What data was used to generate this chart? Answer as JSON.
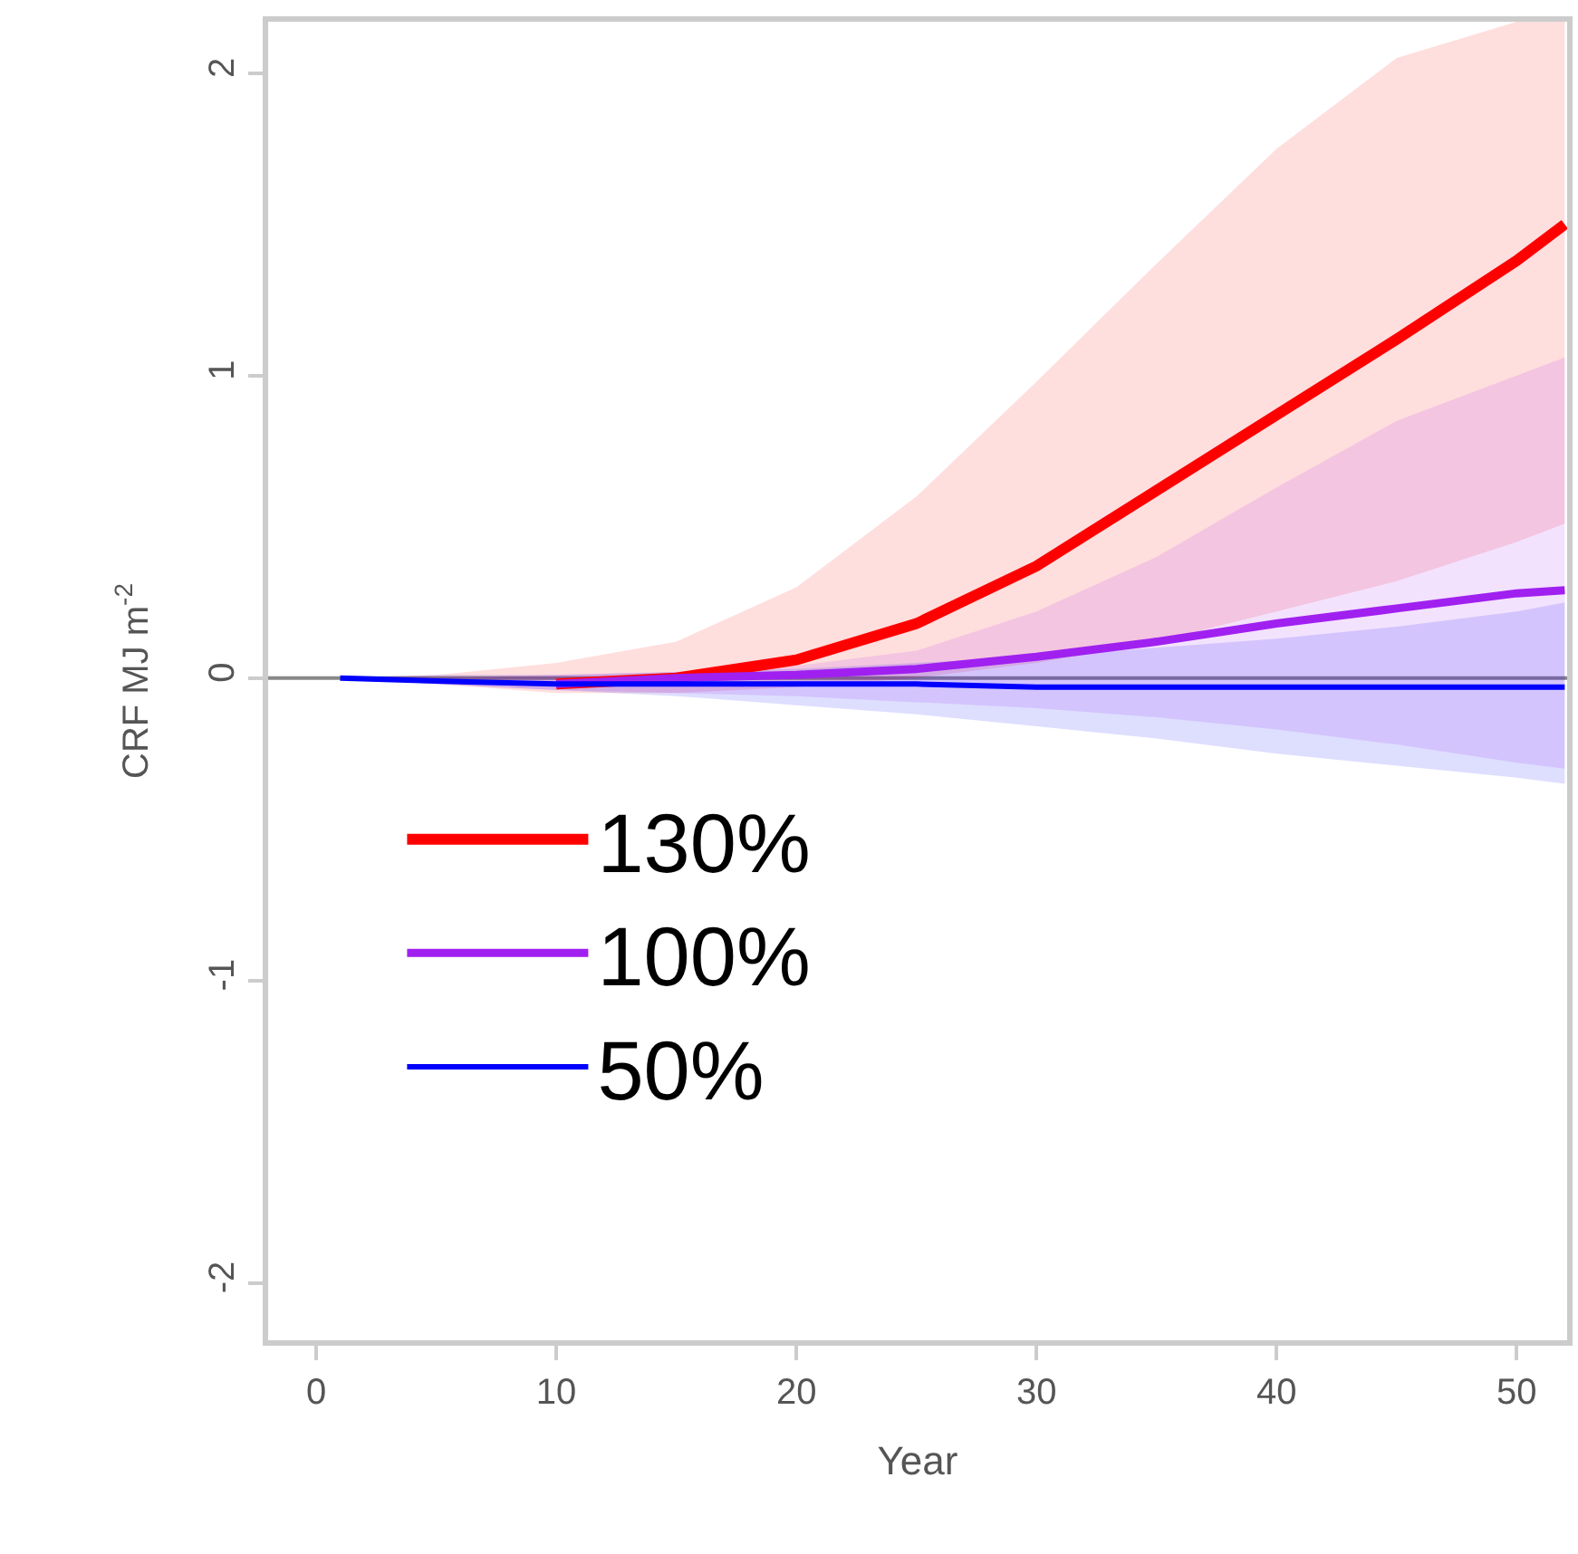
{
  "chart_data": {
    "type": "line",
    "xlabel": "Year",
    "ylabel": "CRF MJ m$^{-2}$",
    "x": [
      1,
      5,
      10,
      15,
      20,
      25,
      30,
      35,
      40,
      45,
      50,
      52
    ],
    "xlim": [
      -2,
      52.1
    ],
    "xticks": [
      0,
      10,
      20,
      30,
      40,
      50
    ],
    "ylim": [
      -2.19,
      2.17
    ],
    "yticks": [
      -2,
      -1,
      0,
      1,
      2
    ],
    "grid": false,
    "legend": "left",
    "marker": "none",
    "line_style": "solid",
    "ref_lines": [
      {
        "axis": "y",
        "value": 0,
        "label": null,
        "color": "#888888"
      }
    ],
    "series": [
      {
        "name": "130%",
        "color": "#ff0000",
        "values": [
          null,
          null,
          -0.02,
          0,
          0.06,
          0.18,
          0.37,
          0.62,
          0.87,
          1.12,
          1.38,
          1.5
        ],
        "lower": [
          0,
          -0.02,
          -0.05,
          -0.05,
          -0.03,
          0,
          0.05,
          0.12,
          0.22,
          0.32,
          0.45,
          0.51
        ],
        "upper": [
          0,
          0.01,
          0.05,
          0.12,
          0.3,
          0.6,
          0.98,
          1.37,
          1.75,
          2.05,
          2.17,
          2.17
        ]
      },
      {
        "name": "100%",
        "color": "#a020f0",
        "values": [
          null,
          null,
          -0.02,
          0,
          0.01,
          0.03,
          0.07,
          0.12,
          0.18,
          0.23,
          0.28,
          0.29
        ],
        "lower": [
          0,
          -0.02,
          -0.04,
          -0.05,
          -0.06,
          -0.08,
          -0.1,
          -0.13,
          -0.17,
          -0.22,
          -0.28,
          -0.3
        ],
        "upper": [
          0,
          0,
          0.01,
          0.02,
          0.04,
          0.09,
          0.22,
          0.4,
          0.63,
          0.85,
          1.0,
          1.06
        ]
      },
      {
        "name": "50%",
        "color": "#0000ff",
        "values": [
          0,
          -0.01,
          -0.02,
          -0.02,
          -0.02,
          -0.02,
          -0.03,
          -0.03,
          -0.03,
          -0.03,
          -0.03,
          -0.03
        ],
        "lower": [
          0,
          -0.02,
          -0.04,
          -0.06,
          -0.09,
          -0.12,
          -0.16,
          -0.2,
          -0.25,
          -0.29,
          -0.33,
          -0.35
        ],
        "upper": [
          0,
          0.01,
          0.01,
          0.02,
          0.03,
          0.05,
          0.07,
          0.1,
          0.13,
          0.17,
          0.22,
          0.25
        ]
      }
    ]
  }
}
